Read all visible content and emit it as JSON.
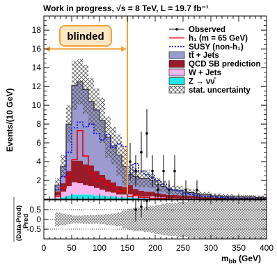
{
  "header": {
    "title": "Work in progress, √s = 8 TeV, L = 19.7 fb⁻¹"
  },
  "annotations": {
    "blinded": "blinded"
  },
  "colors": {
    "ttbar": "#9b9bd0",
    "qcd": "#9a1b2a",
    "wjets": "#f7b6f0",
    "zjets": "#20e8e8",
    "signal_h": "#e8000b",
    "signal_susy": "#1010e0",
    "blind_box": "#f1a23a",
    "blind_fill": "#fde8c3"
  },
  "chart_data": {
    "type": "bar",
    "title": "Work in progress, √s = 8 TeV, L = 19.7 fb⁻¹",
    "xlabel": "m_bb (GeV)",
    "ylabel": "Events/(10 GeV)",
    "ratio_ylabel": "(Data-Pred)/Pred",
    "xlim": [
      0,
      400
    ],
    "ylim": [
      0,
      19.5
    ],
    "ratio_ylim": [
      -1,
      1
    ],
    "x_ticks": [
      "0",
      "50",
      "100",
      "150",
      "200",
      "250",
      "300",
      "350",
      "400"
    ],
    "y_ticks": [
      "2",
      "4",
      "6",
      "8",
      "10",
      "12",
      "14",
      "16",
      "18"
    ],
    "ratio_ticks": [
      "0.5",
      "0",
      "-0.5"
    ],
    "blinded_upper_edge": 150,
    "bin_edges": [
      20,
      30,
      40,
      50,
      60,
      70,
      80,
      90,
      100,
      110,
      120,
      130,
      140,
      150,
      160,
      170,
      180,
      190,
      200,
      210,
      220,
      230,
      240,
      250,
      260,
      270,
      280,
      290,
      300,
      310,
      320,
      330,
      340,
      350,
      360,
      370,
      380,
      390,
      400
    ],
    "stack": [
      {
        "name": "Z → νν̄",
        "values": [
          0.1,
          0.2,
          0.4,
          0.5,
          0.5,
          0.5,
          0.5,
          0.4,
          0.4,
          0.3,
          0.3,
          0.2,
          0.2,
          0.2,
          0.15,
          0.1,
          0.1,
          0.1,
          0.1,
          0.05,
          0.05,
          0.05,
          0.05,
          0.05,
          0.05,
          0.05,
          0.02,
          0.02,
          0.02,
          0.02,
          0.02,
          0.02,
          0.02,
          0.02,
          0.02,
          0.02,
          0.02,
          0.02
        ]
      },
      {
        "name": "W + Jets",
        "values": [
          0.3,
          0.6,
          1.0,
          1.3,
          1.2,
          1.0,
          0.9,
          0.8,
          0.6,
          0.5,
          0.4,
          0.3,
          0.3,
          0.3,
          0.25,
          0.2,
          0.2,
          0.2,
          0.15,
          0.15,
          0.1,
          0.1,
          0.1,
          0.1,
          0.1,
          0.05,
          0.05,
          0.05,
          0.05,
          0.05,
          0.05,
          0.05,
          0.05,
          0.05,
          0.05,
          0.05,
          0.05,
          0.05
        ]
      },
      {
        "name": "QCD SB prediction",
        "values": [
          0.4,
          0.9,
          1.6,
          2.3,
          2.4,
          2.2,
          2.2,
          1.8,
          1.6,
          1.3,
          1.1,
          0.9,
          0.8,
          1.0,
          0.7,
          0.6,
          0.5,
          0.5,
          0.4,
          0.35,
          0.3,
          0.3,
          0.25,
          0.2,
          0.2,
          0.2,
          0.15,
          0.15,
          0.1,
          0.1,
          0.1,
          0.1,
          0.08,
          0.08,
          0.08,
          0.08,
          0.05,
          0.05
        ]
      },
      {
        "name": "tt̄ + Jets",
        "values": [
          0.7,
          1.8,
          5.0,
          8.0,
          8.4,
          8.0,
          6.8,
          6.5,
          5.8,
          4.5,
          3.9,
          3.3,
          2.2,
          1.1,
          1.3,
          1.3,
          1.4,
          1.2,
          0.9,
          0.8,
          0.6,
          0.5,
          0.5,
          0.4,
          0.35,
          0.3,
          0.25,
          0.25,
          0.2,
          0.2,
          0.15,
          0.15,
          0.1,
          0.1,
          0.1,
          0.1,
          0.08,
          0.08
        ]
      }
    ],
    "stat_uncertainty": [
      0.7,
      1.2,
      2.0,
      2.6,
      2.4,
      2.6,
      2.5,
      2.3,
      2.4,
      2.2,
      2.0,
      2.2,
      2.0,
      1.1,
      0.9,
      0.9,
      0.9,
      0.8,
      0.7,
      0.6,
      0.5,
      0.5,
      0.5,
      0.4,
      0.4,
      0.35,
      0.3,
      0.3,
      0.25,
      0.25,
      0.22,
      0.2,
      0.2,
      0.2,
      0.2,
      0.2,
      0.2,
      0.2
    ],
    "signals": [
      {
        "name": "h₁ (m = 65 GeV)",
        "style": "solid",
        "values": [
          0.3,
          1.2,
          2.4,
          4.2,
          7.3,
          4.6,
          2.8,
          1.9,
          2.2,
          1.6,
          1.3,
          0.8,
          0.9,
          0.3,
          0.4,
          0.2,
          0.2,
          0.1,
          0.1,
          0.1,
          0.05,
          0.05,
          0.05,
          0.05,
          0.02,
          0.02,
          0.02,
          0.02,
          0.02,
          0.02,
          0.0,
          0.0,
          0.0,
          0.0,
          0.0,
          0.0,
          0.0,
          0.0
        ]
      },
      {
        "name": "SUSY (non-h₁)",
        "style": "dotted",
        "values": [
          1.0,
          2.4,
          5.0,
          7.6,
          8.2,
          7.7,
          8.0,
          7.0,
          6.3,
          6.9,
          5.5,
          5.9,
          5.6,
          2.8,
          3.8,
          3.0,
          2.6,
          2.3,
          2.0,
          1.6,
          1.1,
          1.0,
          0.9,
          0.6,
          0.5,
          0.4,
          0.3,
          0.3,
          0.25,
          0.2,
          0.15,
          0.15,
          0.1,
          0.1,
          0.1,
          0.1,
          0.05,
          0.05
        ]
      }
    ],
    "observed": {
      "name": "Observed",
      "x": [
        155,
        165,
        175,
        185,
        195,
        205,
        215,
        225,
        235,
        245,
        255,
        265,
        275,
        285,
        295,
        305,
        315,
        325,
        335,
        345,
        355,
        365,
        375,
        385,
        395
      ],
      "y": [
        4,
        3,
        5,
        7,
        3,
        1,
        3,
        1,
        3,
        0,
        1,
        0,
        1,
        0,
        0,
        0,
        0,
        0,
        0,
        0,
        0,
        0,
        0,
        0,
        0
      ],
      "yerr": [
        2.0,
        1.7,
        2.2,
        2.6,
        1.7,
        1.0,
        1.7,
        1.0,
        1.7,
        0,
        1.0,
        0,
        1.0,
        0,
        0,
        0,
        0,
        0,
        0,
        0,
        0,
        0,
        0,
        0,
        0
      ]
    },
    "ratio": {
      "x": [
        165,
        175,
        185
      ],
      "y": [
        0.5,
        0.65,
        0.95
      ],
      "yerr": [
        0.6,
        0.55,
        0.45
      ],
      "band_halfwidth": [
        0.35,
        0.3,
        0.25,
        0.2,
        0.2,
        0.22,
        0.22,
        0.22,
        0.25,
        0.28,
        0.3,
        0.35,
        0.45,
        0.55,
        0.6,
        0.6,
        0.65,
        0.7,
        0.75,
        0.8,
        0.85,
        0.85,
        0.9,
        0.9,
        0.95,
        0.95,
        1.0,
        1.0,
        1.0,
        1.0,
        1.0,
        1.0,
        1.0,
        1.0,
        1.0,
        1.0,
        1.0,
        1.0
      ]
    },
    "legend": {
      "placement": "top-right",
      "entries": [
        {
          "label": "Observed",
          "kind": "marker"
        },
        {
          "label": "h₁ (m = 65 GeV)",
          "kind": "line-solid"
        },
        {
          "label": "SUSY (non-h₁)",
          "kind": "line-dotted"
        },
        {
          "label": "tt̄ + Jets",
          "kind": "fill-ttbar"
        },
        {
          "label": "QCD SB prediction",
          "kind": "fill-qcd"
        },
        {
          "label": "W + Jets",
          "kind": "fill-wjets"
        },
        {
          "label": "Z → νν̄",
          "kind": "fill-zjets"
        },
        {
          "label": "stat. uncertainty",
          "kind": "hatch"
        }
      ]
    }
  }
}
